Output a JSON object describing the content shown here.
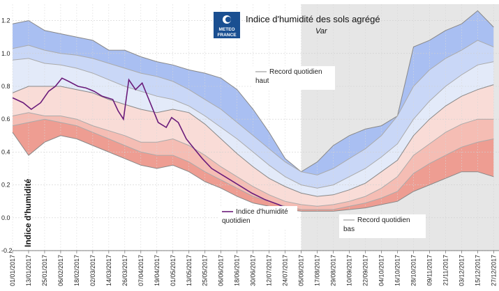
{
  "chart_data": {
    "type": "area",
    "title": "Indice d'humidité des sols agrégé",
    "subtitle": "Var",
    "ylabel": "Indice d'humidité",
    "ylim": [
      -0.2,
      1.3
    ],
    "yticks": [
      -0.2,
      0.0,
      0.2,
      0.4,
      0.6,
      0.8,
      1.0,
      1.2
    ],
    "grid": true,
    "shaded_region": {
      "x_start": "05/08/2017",
      "x_end": "27/12/2017",
      "color": "#e6e6e6"
    },
    "x_tick_labels": [
      "01/01/2017",
      "13/01/2017",
      "25/01/2017",
      "06/02/2017",
      "18/02/2017",
      "02/03/2017",
      "14/03/2017",
      "26/03/2017",
      "07/04/2017",
      "19/04/2017",
      "01/05/2017",
      "13/05/2017",
      "25/05/2017",
      "06/06/2017",
      "18/06/2017",
      "30/06/2017",
      "12/07/2017",
      "24/07/2017",
      "05/08/2017",
      "17/08/2017",
      "29/08/2017",
      "10/09/2017",
      "22/09/2017",
      "04/10/2017",
      "16/10/2017",
      "28/10/2017",
      "09/11/2017",
      "21/11/2017",
      "03/12/2017",
      "15/12/2017",
      "27/12/2017"
    ],
    "x_day": [
      1,
      13,
      25,
      37,
      49,
      61,
      73,
      85,
      97,
      109,
      121,
      133,
      145,
      157,
      169,
      181,
      193,
      205,
      217,
      229,
      241,
      253,
      265,
      277,
      289,
      301,
      313,
      325,
      337,
      349,
      361
    ],
    "series": [
      {
        "key": "record_haut",
        "color": "#888888",
        "values": [
          1.18,
          1.2,
          1.14,
          1.12,
          1.1,
          1.08,
          1.02,
          1.02,
          0.98,
          0.95,
          0.93,
          0.9,
          0.88,
          0.85,
          0.78,
          0.66,
          0.52,
          0.36,
          0.28,
          0.34,
          0.44,
          0.5,
          0.54,
          0.56,
          0.62,
          1.04,
          1.08,
          1.14,
          1.18,
          1.26,
          1.16
        ]
      },
      {
        "key": "q90",
        "color": "#aaaaaa",
        "values": [
          1.03,
          1.05,
          1.02,
          1.0,
          0.99,
          0.97,
          0.94,
          0.91,
          0.88,
          0.86,
          0.83,
          0.78,
          0.72,
          0.66,
          0.58,
          0.5,
          0.42,
          0.34,
          0.28,
          0.26,
          0.3,
          0.36,
          0.42,
          0.5,
          0.62,
          0.8,
          0.9,
          0.97,
          1.02,
          1.08,
          1.04
        ]
      },
      {
        "key": "q75",
        "color": "#aaaaaa",
        "values": [
          0.96,
          0.97,
          0.94,
          0.93,
          0.91,
          0.88,
          0.84,
          0.8,
          0.77,
          0.74,
          0.72,
          0.68,
          0.62,
          0.55,
          0.48,
          0.4,
          0.32,
          0.25,
          0.2,
          0.18,
          0.2,
          0.25,
          0.3,
          0.37,
          0.45,
          0.6,
          0.71,
          0.8,
          0.87,
          0.93,
          0.95
        ]
      },
      {
        "key": "mediane",
        "color": "#888888",
        "values": [
          0.76,
          0.8,
          0.8,
          0.8,
          0.78,
          0.76,
          0.72,
          0.69,
          0.66,
          0.64,
          0.66,
          0.64,
          0.57,
          0.48,
          0.39,
          0.31,
          0.24,
          0.19,
          0.15,
          0.13,
          0.14,
          0.17,
          0.21,
          0.28,
          0.35,
          0.5,
          0.6,
          0.68,
          0.74,
          0.78,
          0.81
        ]
      },
      {
        "key": "q25",
        "color": "#aaaaaa",
        "values": [
          0.62,
          0.64,
          0.62,
          0.62,
          0.6,
          0.56,
          0.53,
          0.5,
          0.46,
          0.46,
          0.48,
          0.44,
          0.38,
          0.31,
          0.25,
          0.19,
          0.14,
          0.1,
          0.08,
          0.07,
          0.08,
          0.1,
          0.13,
          0.18,
          0.25,
          0.38,
          0.45,
          0.52,
          0.57,
          0.6,
          0.6
        ]
      },
      {
        "key": "q10",
        "color": "#aaaaaa",
        "values": [
          0.56,
          0.58,
          0.6,
          0.58,
          0.56,
          0.52,
          0.48,
          0.44,
          0.4,
          0.38,
          0.38,
          0.34,
          0.28,
          0.23,
          0.18,
          0.13,
          0.1,
          0.07,
          0.05,
          0.05,
          0.05,
          0.07,
          0.09,
          0.12,
          0.16,
          0.27,
          0.33,
          0.38,
          0.43,
          0.46,
          0.48
        ]
      },
      {
        "key": "record_bas",
        "color": "#888888",
        "values": [
          0.52,
          0.38,
          0.46,
          0.5,
          0.48,
          0.44,
          0.4,
          0.36,
          0.32,
          0.3,
          0.32,
          0.28,
          0.22,
          0.18,
          0.13,
          0.09,
          0.07,
          0.05,
          0.04,
          0.04,
          0.04,
          0.05,
          0.06,
          0.08,
          0.1,
          0.16,
          0.2,
          0.24,
          0.28,
          0.28,
          0.25
        ]
      },
      {
        "key": "indice_quotidien",
        "color": "#6a1b7a",
        "x_day": [
          1,
          9,
          15,
          22,
          28,
          33,
          38,
          43,
          50,
          56,
          62,
          68,
          76,
          80,
          84,
          88,
          93,
          98,
          104,
          110,
          116,
          120,
          125,
          131,
          137,
          143,
          150,
          160,
          170,
          180,
          190,
          200,
          208,
          214
        ],
        "values": [
          0.73,
          0.7,
          0.66,
          0.7,
          0.77,
          0.8,
          0.85,
          0.83,
          0.8,
          0.79,
          0.77,
          0.74,
          0.72,
          0.65,
          0.6,
          0.84,
          0.78,
          0.82,
          0.7,
          0.58,
          0.55,
          0.61,
          0.58,
          0.48,
          0.42,
          0.36,
          0.3,
          0.25,
          0.2,
          0.15,
          0.11,
          0.08,
          0.05,
          0.04
        ]
      }
    ],
    "legend": [
      {
        "label": "Record quotidien\nhaut",
        "position": "top-center"
      },
      {
        "label": "Indice d'humidité\nquotidien",
        "position": "bottom-center"
      },
      {
        "label": "Record quotidien\nbas",
        "position": "bottom-right"
      }
    ],
    "band_colors": {
      "record_haut_q90": "#a9bff2",
      "q90_q75": "#c9d7f7",
      "q75_mediane": "#e3eaf9",
      "mediane_q25": "#f9dcd7",
      "q25_q10": "#f5bdb4",
      "q10_record_bas": "#ee9d92"
    }
  },
  "logo": {
    "line1": "METEO",
    "line2": "FRANCE",
    "bg": "#1a4f91"
  }
}
